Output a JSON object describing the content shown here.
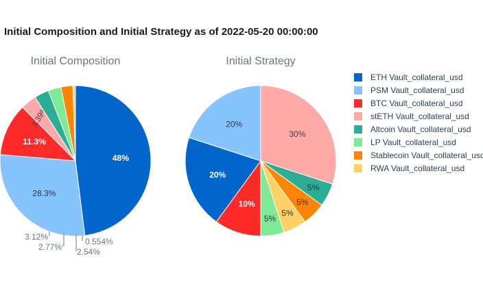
{
  "title": "Initial Composition and Initial Strategy as of 2022-05-20 00:00:00",
  "chart_data": [
    {
      "type": "pie",
      "title": "Initial Composition",
      "slices": [
        {
          "name": "ETH Vault_collateral_usd",
          "value": 48.0,
          "label": "48%",
          "color": "#0066CC",
          "label_color": "#ffffff",
          "label_weight": "bold"
        },
        {
          "name": "PSM Vault_collateral_usd",
          "value": 28.3,
          "label": "28.3%",
          "color": "#87C4FF",
          "label_color": "#333333",
          "label_weight": "normal"
        },
        {
          "name": "BTC Vault_collateral_usd",
          "value": 11.3,
          "label": "11.3%",
          "color": "#FF2A2A",
          "label_color": "#ffffff",
          "label_weight": "bold"
        },
        {
          "name": "stETH Vault_collateral_usd",
          "value": 3.39,
          "label": "3.39%",
          "color": "#FFA8A8",
          "label_color": "#444444",
          "label_weight": "normal"
        },
        {
          "name": "Altcoin Vault_collateral_usd",
          "value": 3.12,
          "label": "3.12%",
          "color": "#2BAE94",
          "label_color": "#6e7380",
          "label_weight": "normal"
        },
        {
          "name": "LP Vault_collateral_usd",
          "value": 2.77,
          "label": "2.77%",
          "color": "#7DEB95",
          "label_color": "#6e7380",
          "label_weight": "normal"
        },
        {
          "name": "Stablecoin Vault_collateral_usd",
          "value": 2.54,
          "label": "2.54%",
          "color": "#FF8400",
          "label_color": "#6e7380",
          "label_weight": "normal"
        },
        {
          "name": "RWA Vault_collateral_usd",
          "value": 0.554,
          "label": "0.554%",
          "color": "#FFD166",
          "label_color": "#6e7380",
          "label_weight": "normal"
        }
      ]
    },
    {
      "type": "pie",
      "title": "Initial Strategy",
      "slices": [
        {
          "name": "stETH Vault_collateral_usd",
          "value": 30,
          "label": "30%",
          "color": "#FFA8A8",
          "label_color": "#444444",
          "label_weight": "normal"
        },
        {
          "name": "Altcoin Vault_collateral_usd",
          "value": 5,
          "label": "5%",
          "color": "#2BAE94",
          "label_color": "#333333",
          "label_weight": "normal"
        },
        {
          "name": "Stablecoin Vault_collateral_usd",
          "value": 5,
          "label": "5%",
          "color": "#FF8400",
          "label_color": "#333333",
          "label_weight": "normal"
        },
        {
          "name": "RWA Vault_collateral_usd",
          "value": 5,
          "label": "5%",
          "color": "#FFD166",
          "label_color": "#333333",
          "label_weight": "normal"
        },
        {
          "name": "LP Vault_collateral_usd",
          "value": 5,
          "label": "5%",
          "color": "#7DEB95",
          "label_color": "#333333",
          "label_weight": "normal"
        },
        {
          "name": "BTC Vault_collateral_usd",
          "value": 10,
          "label": "10%",
          "color": "#FF2A2A",
          "label_color": "#ffffff",
          "label_weight": "bold"
        },
        {
          "name": "ETH Vault_collateral_usd",
          "value": 20,
          "label": "20%",
          "color": "#0066CC",
          "label_color": "#ffffff",
          "label_weight": "bold"
        },
        {
          "name": "PSM Vault_collateral_usd",
          "value": 20,
          "label": "20%",
          "color": "#87C4FF",
          "label_color": "#333333",
          "label_weight": "normal"
        }
      ]
    }
  ],
  "legend": {
    "placement": "right",
    "items": [
      {
        "label": "ETH Vault_collateral_usd",
        "color": "#0066CC"
      },
      {
        "label": "PSM Vault_collateral_usd",
        "color": "#87C4FF"
      },
      {
        "label": "BTC Vault_collateral_usd",
        "color": "#FF2A2A"
      },
      {
        "label": "stETH Vault_collateral_usd",
        "color": "#FFA8A8"
      },
      {
        "label": "Altcoin Vault_collateral_usd",
        "color": "#2BAE94"
      },
      {
        "label": "LP Vault_collateral_usd",
        "color": "#7DEB95"
      },
      {
        "label": "Stablecoin Vault_collateral_usd",
        "color": "#FF8400"
      },
      {
        "label": "RWA Vault_collateral_usd",
        "color": "#FFD166"
      }
    ]
  }
}
